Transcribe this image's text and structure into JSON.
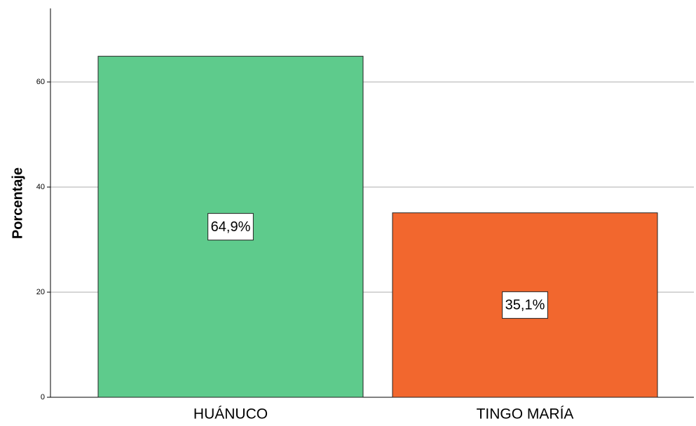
{
  "chart_data": {
    "type": "bar",
    "y_label": "Porcentaje",
    "categories": [
      "HUÁNUCO",
      "TINGO MARÍA"
    ],
    "values": [
      64.9,
      35.1
    ],
    "value_labels": [
      "64,9%",
      "35,1%"
    ],
    "colors": [
      "#5ecb8c",
      "#f2672e"
    ],
    "ylim": [
      0,
      74
    ],
    "yticks": [
      0,
      20,
      40,
      60
    ],
    "grid": true
  }
}
